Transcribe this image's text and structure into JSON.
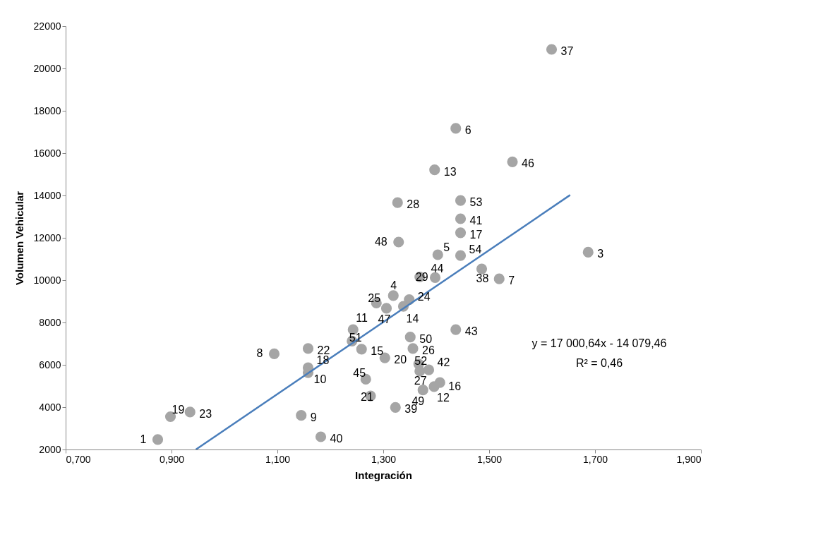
{
  "chart_data": {
    "type": "scatter",
    "xlabel": "Integración",
    "ylabel": "Volumen Vehicular",
    "xlim": [
      0.7,
      1.9
    ],
    "ylim": [
      2000,
      22000
    ],
    "xticks": [
      {
        "value": 0.7,
        "label": "0,700"
      },
      {
        "value": 0.9,
        "label": "0,900"
      },
      {
        "value": 1.1,
        "label": "1,100"
      },
      {
        "value": 1.3,
        "label": "1,300"
      },
      {
        "value": 1.5,
        "label": "1,500"
      },
      {
        "value": 1.7,
        "label": "1,700"
      },
      {
        "value": 1.9,
        "label": "1,900"
      }
    ],
    "yticks": [
      2000,
      4000,
      6000,
      8000,
      10000,
      12000,
      14000,
      16000,
      18000,
      20000,
      22000
    ],
    "grid": false,
    "marker": "circle",
    "series": [
      {
        "color": "#a5a5a5",
        "x": [
          0.874,
          0.898,
          0.935,
          1.094,
          1.158,
          1.158,
          1.158,
          1.145,
          1.182,
          1.243,
          1.241,
          1.259,
          1.303,
          1.267,
          1.276,
          1.323,
          1.351,
          1.356,
          1.367,
          1.369,
          1.386,
          1.407,
          1.396,
          1.375,
          1.437,
          1.287,
          1.306,
          1.319,
          1.349,
          1.338,
          1.369,
          1.398,
          1.486,
          1.519,
          1.327,
          1.446,
          1.446,
          1.446,
          1.329,
          1.403,
          1.446,
          1.687,
          1.618,
          1.437,
          1.544,
          1.397
        ],
        "values": [
          2470,
          3550,
          3770,
          6520,
          6770,
          5860,
          5630,
          3610,
          2600,
          7660,
          7120,
          6740,
          6330,
          5320,
          4530,
          3990,
          7310,
          6770,
          6040,
          5700,
          5760,
          5160,
          4970,
          4810,
          7660,
          8920,
          8670,
          9270,
          9080,
          8760,
          10150,
          10120,
          10530,
          10060,
          13660,
          13760,
          12900,
          12240,
          11800,
          11200,
          11160,
          11320,
          20900,
          17170,
          15590,
          15210
        ]
      },
      {
        "type": "line",
        "color": "#4a7ebb",
        "line_style": "solid",
        "marker": "none",
        "x": [
          0.946,
          1.653
        ],
        "values": [
          2000,
          14020
        ]
      }
    ],
    "annotations": [
      {
        "text": "1",
        "x": 0.874,
        "y": 2470
      },
      {
        "text": "19",
        "x": 0.898,
        "y": 3550
      },
      {
        "text": "23",
        "x": 0.935,
        "y": 3770
      },
      {
        "text": "8",
        "x": 1.094,
        "y": 6520
      },
      {
        "text": "22",
        "x": 1.158,
        "y": 6770
      },
      {
        "text": "18",
        "x": 1.158,
        "y": 5860
      },
      {
        "text": "10",
        "x": 1.158,
        "y": 5630
      },
      {
        "text": "9",
        "x": 1.145,
        "y": 3610
      },
      {
        "text": "40",
        "x": 1.182,
        "y": 2600
      },
      {
        "text": "11",
        "x": 1.243,
        "y": 7660
      },
      {
        "text": "51",
        "x": 1.241,
        "y": 7120
      },
      {
        "text": "15",
        "x": 1.259,
        "y": 6740
      },
      {
        "text": "20",
        "x": 1.303,
        "y": 6330
      },
      {
        "text": "45",
        "x": 1.267,
        "y": 5320
      },
      {
        "text": "21",
        "x": 1.276,
        "y": 4530
      },
      {
        "text": "39",
        "x": 1.323,
        "y": 3990
      },
      {
        "text": "50",
        "x": 1.351,
        "y": 7310
      },
      {
        "text": "26",
        "x": 1.356,
        "y": 6770
      },
      {
        "text": "52",
        "x": 1.367,
        "y": 6040
      },
      {
        "text": "27",
        "x": 1.369,
        "y": 5700
      },
      {
        "text": "42",
        "x": 1.386,
        "y": 5760
      },
      {
        "text": "16",
        "x": 1.407,
        "y": 5160
      },
      {
        "text": "12",
        "x": 1.396,
        "y": 4970
      },
      {
        "text": "49",
        "x": 1.375,
        "y": 4810
      },
      {
        "text": "43",
        "x": 1.437,
        "y": 7660
      },
      {
        "text": "25",
        "x": 1.287,
        "y": 8920
      },
      {
        "text": "47",
        "x": 1.306,
        "y": 8670
      },
      {
        "text": "4",
        "x": 1.319,
        "y": 9270
      },
      {
        "text": "24",
        "x": 1.349,
        "y": 9080
      },
      {
        "text": "14",
        "x": 1.338,
        "y": 8760
      },
      {
        "text": "29",
        "x": 1.369,
        "y": 10150
      },
      {
        "text": "44",
        "x": 1.398,
        "y": 10120
      },
      {
        "text": "38",
        "x": 1.486,
        "y": 10530
      },
      {
        "text": "7",
        "x": 1.519,
        "y": 10060
      },
      {
        "text": "28",
        "x": 1.327,
        "y": 13660
      },
      {
        "text": "53",
        "x": 1.446,
        "y": 13760
      },
      {
        "text": "41",
        "x": 1.446,
        "y": 12900
      },
      {
        "text": "17",
        "x": 1.446,
        "y": 12240
      },
      {
        "text": "48",
        "x": 1.329,
        "y": 11800
      },
      {
        "text": "5",
        "x": 1.403,
        "y": 11200
      },
      {
        "text": "54",
        "x": 1.446,
        "y": 11160
      },
      {
        "text": "3",
        "x": 1.687,
        "y": 11320
      },
      {
        "text": "37",
        "x": 1.618,
        "y": 20900
      },
      {
        "text": "6",
        "x": 1.437,
        "y": 17170
      },
      {
        "text": "46",
        "x": 1.544,
        "y": 15590
      },
      {
        "text": "13",
        "x": 1.397,
        "y": 15210
      },
      "y = 17 000,64x - 14 079,46",
      "R² = 0,46"
    ]
  }
}
